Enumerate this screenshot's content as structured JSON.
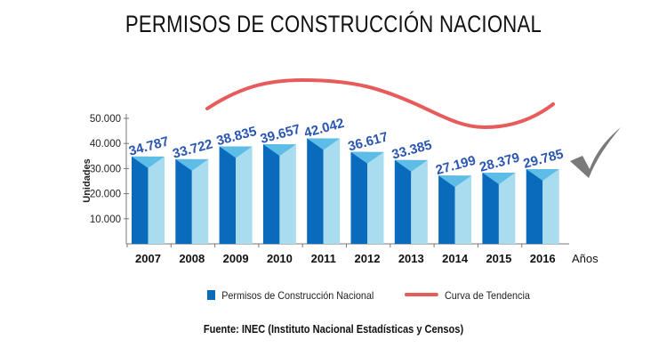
{
  "title": "PERMISOS DE CONSTRUCCIÓN NACIONAL",
  "source": "Fuente: INEC (Instituto Nacional Estadísticas y Censos)",
  "colors": {
    "bar_dark": "#0a6bbd",
    "bar_light": "#a9dcef",
    "bar_top": "#5dbde6",
    "label": "#2a55b0",
    "trend": "#e85b5b",
    "check": "#7a7a7a"
  },
  "icons": {
    "check": "checkmark-icon"
  },
  "chart_data": {
    "type": "bar",
    "title": "PERMISOS DE CONSTRUCCIÓN NACIONAL",
    "xlabel": "Años",
    "ylabel": "Unidades",
    "categories": [
      "2007",
      "2008",
      "2009",
      "2010",
      "2011",
      "2012",
      "2013",
      "2014",
      "2015",
      "2016"
    ],
    "series": [
      {
        "name": "Permisos de Construcción Nacional",
        "values": [
          34787,
          33722,
          38835,
          39657,
          42042,
          36617,
          33385,
          27199,
          28379,
          29785
        ]
      }
    ],
    "data_labels": [
      "34.787",
      "33.722",
      "38.835",
      "39.657",
      "42.042",
      "36.617",
      "33.385",
      "27.199",
      "28.379",
      "29.785"
    ],
    "yticks": [
      "10.000",
      "20.000",
      "30.000",
      "40.000",
      "50.000"
    ],
    "ytick_values": [
      10000,
      20000,
      30000,
      40000,
      50000
    ],
    "ylim": [
      0,
      50000
    ],
    "grid": false,
    "legend": {
      "position": "bottom",
      "entries": [
        "Permisos de Construcción Nacional",
        "Curva de Tendencia"
      ]
    },
    "trend_name": "Curva de Tendencia"
  }
}
